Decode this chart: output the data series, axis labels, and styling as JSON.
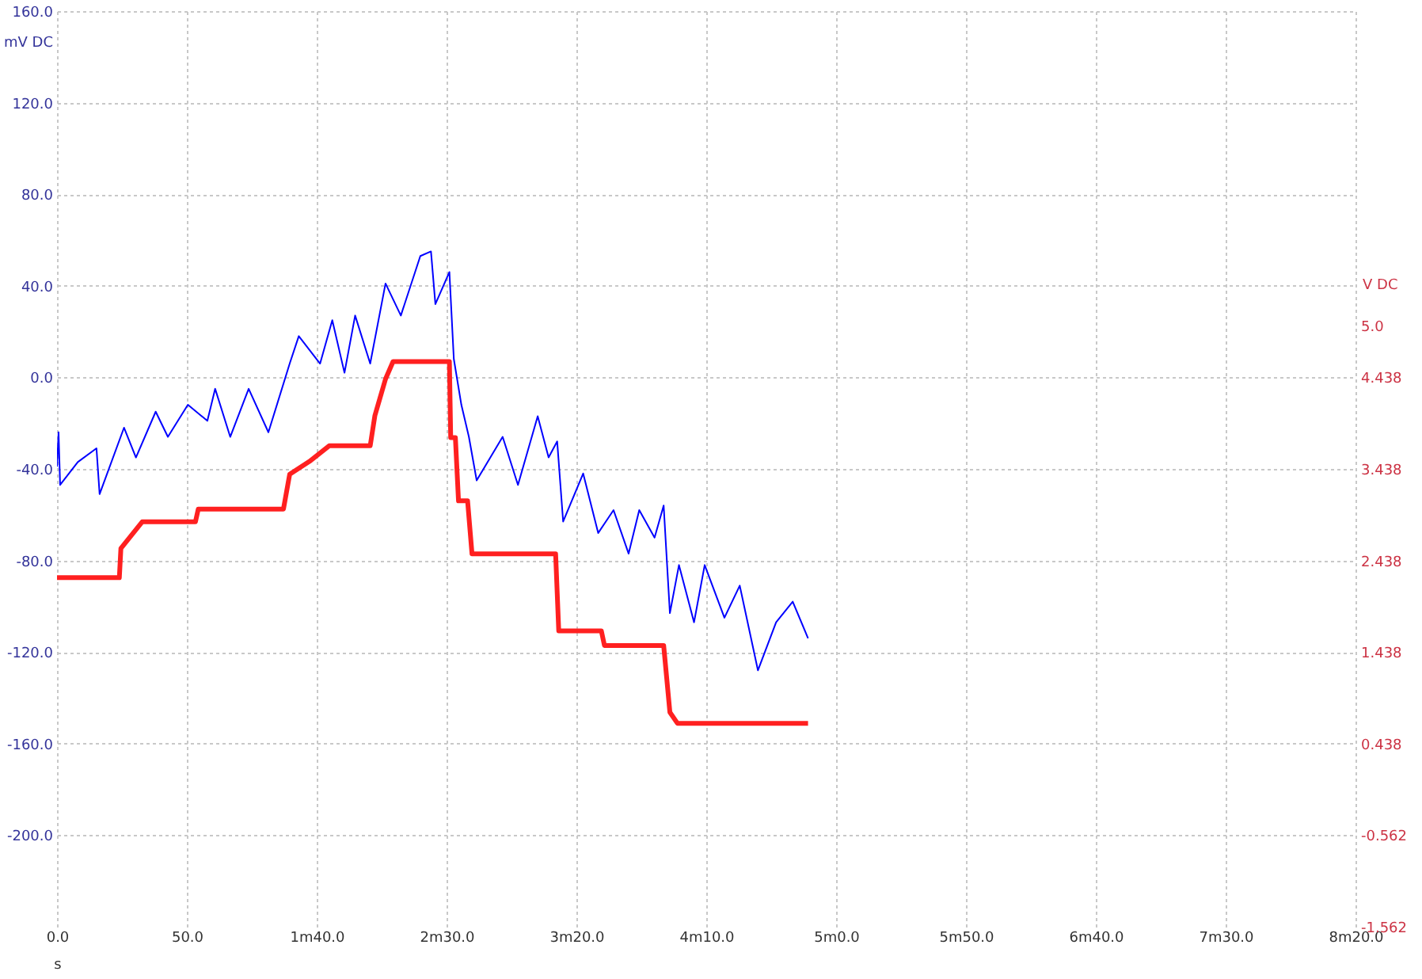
{
  "chart_data": {
    "type": "line",
    "xlabel": "s",
    "ylabel": "mV DC",
    "y2label": "V DC",
    "xlim": [
      0,
      500
    ],
    "xticks": [
      {
        "value": 0,
        "label": "0.0"
      },
      {
        "value": 50,
        "label": "50.0"
      },
      {
        "value": 100,
        "label": "1m40.0"
      },
      {
        "value": 150,
        "label": "2m30.0"
      },
      {
        "value": 200,
        "label": "3m20.0"
      },
      {
        "value": 250,
        "label": "4m10.0"
      },
      {
        "value": 300,
        "label": "5m0.0"
      },
      {
        "value": 350,
        "label": "5m50.0"
      },
      {
        "value": 400,
        "label": "6m40.0"
      },
      {
        "value": 450,
        "label": "7m30.0"
      },
      {
        "value": 500,
        "label": "8m20.0"
      }
    ],
    "ylim": [
      -240,
      160
    ],
    "yticks": [
      {
        "value": -200,
        "label": "-200.0"
      },
      {
        "value": -160,
        "label": "-160.0"
      },
      {
        "value": -120,
        "label": "-120.0"
      },
      {
        "value": -80,
        "label": "-80.0"
      },
      {
        "value": -40,
        "label": "-40.0"
      },
      {
        "value": 0,
        "label": "0.0"
      },
      {
        "value": 40,
        "label": "40.0"
      },
      {
        "value": 80,
        "label": "80.0"
      },
      {
        "value": 120,
        "label": "120.0"
      },
      {
        "value": 160,
        "label": "160.0"
      }
    ],
    "y2lim": [
      -1.562,
      8.438
    ],
    "y2ticks": [
      -1.562,
      -0.562,
      0.438,
      1.438,
      2.438,
      3.438,
      4.438,
      {
        "value": 5,
        "label": "5.0"
      }
    ],
    "grid": true,
    "line_style": "solid",
    "marker": "none",
    "series": [
      {
        "color": "#0000ff",
        "x": [
          0,
          0.6,
          1.2,
          8,
          15.2,
          16.4,
          25.8,
          30.4,
          38,
          42.7,
          50.4,
          57.9,
          60.9,
          66.7,
          73.8,
          81.4,
          89.6,
          93.1,
          101.3,
          106,
          110.7,
          114.8,
          120.6,
          126.5,
          132.4,
          139.9,
          144,
          145.7,
          151.1,
          152.8,
          155.7,
          158.6,
          161.6,
          171.6,
          177.5,
          185.1,
          189.3,
          192.6,
          194.9,
          202.6,
          208.4,
          214.3,
          220.1,
          224.2,
          230.1,
          233.6,
          236,
          239.5,
          245.3,
          249.4,
          257,
          262.9,
          269.9,
          276.9,
          283.3,
          289.2
        ],
        "values": [
          -39,
          -24,
          -47,
          -37,
          -31,
          -51,
          -22,
          -35,
          -15,
          -26,
          -12,
          -19,
          -5,
          -26,
          -5,
          -24,
          6,
          18,
          6,
          25,
          2,
          27,
          6,
          41,
          27,
          53,
          55,
          32,
          46,
          8,
          -12,
          -26,
          -45,
          -26,
          -47,
          -17,
          -35,
          -28,
          -63,
          -42,
          -68,
          -58,
          -77,
          -58,
          -70,
          -56,
          -103,
          -82,
          -107,
          -82,
          -105,
          -91,
          -128,
          -107,
          -98,
          -114
        ]
      },
      {
        "color": "#ff2020",
        "axis": "y2",
        "x": [
          0,
          24,
          24.6,
          32.8,
          53.3,
          54.4,
          87.2,
          89.6,
          97.2,
          104.8,
          120.6,
          122.4,
          126.5,
          129.4,
          151.1,
          151.6,
          153.4,
          154.6,
          158.1,
          159.8,
          192,
          193.2,
          209.6,
          210.8,
          233.6,
          236,
          238.9,
          289.2
        ],
        "values": [
          2.25,
          2.25,
          2.57,
          2.86,
          2.86,
          3.0,
          3.0,
          3.38,
          3.52,
          3.69,
          3.69,
          4.02,
          4.42,
          4.61,
          4.61,
          3.78,
          3.78,
          3.09,
          3.09,
          2.51,
          2.51,
          1.67,
          1.67,
          1.51,
          1.51,
          0.78,
          0.66,
          0.66
        ]
      }
    ]
  }
}
